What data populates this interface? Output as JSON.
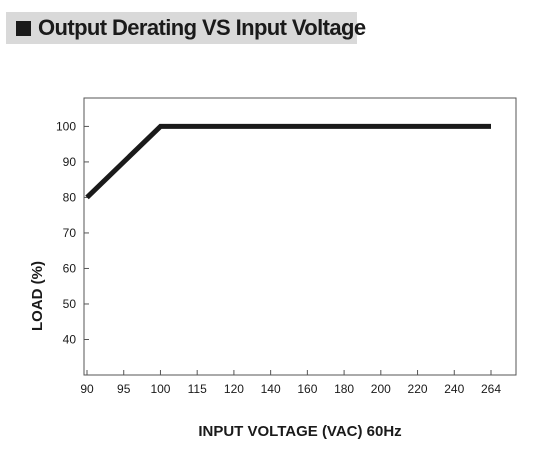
{
  "header": {
    "title": "Output Derating VS Input Voltage"
  },
  "chart_data": {
    "type": "line",
    "title": "Output Derating VS Input Voltage",
    "xlabel": "INPUT VOLTAGE (VAC) 60Hz",
    "ylabel": "LOAD (%)",
    "x_categories": [
      "90",
      "95",
      "100",
      "115",
      "120",
      "140",
      "160",
      "180",
      "200",
      "220",
      "240",
      "264"
    ],
    "y_ticks": [
      40,
      50,
      60,
      70,
      80,
      90,
      100
    ],
    "ylim": [
      30,
      108
    ],
    "grid": false,
    "series": [
      {
        "points": [
          {
            "x": "90",
            "y": 80
          },
          {
            "x": "100",
            "y": 100
          },
          {
            "x": "264",
            "y": 100
          }
        ]
      }
    ]
  }
}
